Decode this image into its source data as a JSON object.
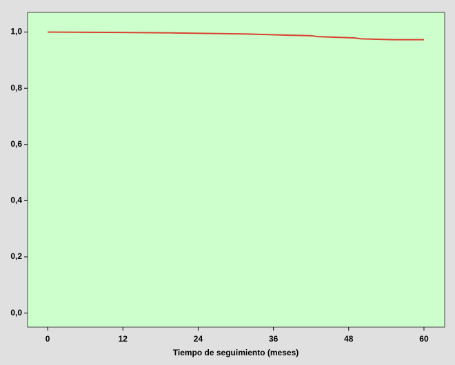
{
  "chart_data": {
    "type": "line",
    "x_label": "Tiempo de seguimiento (meses)",
    "x": [
      0,
      10,
      20,
      32,
      38,
      42,
      43,
      48,
      49,
      50,
      55,
      60
    ],
    "series": [
      {
        "color": "#d9412f",
        "values": [
          1.0,
          0.999,
          0.997,
          0.993,
          0.989,
          0.987,
          0.984,
          0.98,
          0.979,
          0.976,
          0.973,
          0.973
        ]
      }
    ],
    "xlim": [
      -3.2,
      63.3
    ],
    "xticks": [
      0,
      12,
      24,
      36,
      48,
      60
    ],
    "ylim": [
      -0.05,
      1.07
    ],
    "yticks": [
      {
        "value": 0,
        "label": "0,0"
      },
      {
        "value": 0.2,
        "label": "0,2"
      },
      {
        "value": 0.4,
        "label": "0,4"
      },
      {
        "value": 0.6,
        "label": "0,6"
      },
      {
        "value": 0.8,
        "label": "0,8"
      },
      {
        "value": 1.0,
        "label": "1,0"
      }
    ],
    "plot_color": "#ccffcc",
    "grid": false
  }
}
